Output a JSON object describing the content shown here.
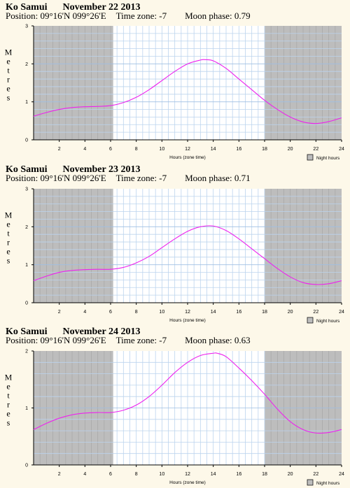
{
  "chart_data": [
    {
      "type": "line",
      "location": "Ko Samui",
      "date": "November 22 2013",
      "position": "Position: 09°16'N 099°26'E",
      "time_zone": "Time zone: -7",
      "moon_phase": "Moon phase: 0.79",
      "ylabel": "Metres",
      "xlabel": "Hours (zone time)",
      "legend_label": "Night hours",
      "xlim": [
        0,
        24
      ],
      "ylim": [
        0,
        3
      ],
      "x_ticks": [
        "2",
        "4",
        "6",
        "8",
        "10",
        "12",
        "14",
        "16",
        "18",
        "20",
        "22",
        "24"
      ],
      "y_ticks": [
        "0",
        "1",
        "2",
        "3"
      ],
      "night_before_hour": 6.2,
      "night_after_hour": 18.0,
      "series": [
        {
          "x": [
            0,
            1,
            2,
            3,
            4,
            5,
            6,
            7,
            8,
            9,
            10,
            11,
            12,
            13,
            13.4,
            14,
            15,
            16,
            17,
            18,
            19,
            20,
            21,
            22,
            23,
            24
          ],
          "y": [
            0.62,
            0.72,
            0.8,
            0.85,
            0.87,
            0.88,
            0.9,
            0.98,
            1.12,
            1.32,
            1.56,
            1.8,
            2.0,
            2.1,
            2.11,
            2.08,
            1.88,
            1.6,
            1.32,
            1.04,
            0.8,
            0.6,
            0.47,
            0.43,
            0.48,
            0.58
          ]
        }
      ]
    },
    {
      "type": "line",
      "location": "Ko Samui",
      "date": "November 23 2013",
      "position": "Position: 09°16'N 099°26'E",
      "time_zone": "Time zone: -7",
      "moon_phase": "Moon phase: 0.71",
      "ylabel": "Metres",
      "xlabel": "Hours (zone time)",
      "legend_label": "Night hours",
      "xlim": [
        0,
        24
      ],
      "ylim": [
        0,
        3
      ],
      "x_ticks": [
        "2",
        "4",
        "6",
        "8",
        "10",
        "12",
        "14",
        "16",
        "18",
        "20",
        "22",
        "24"
      ],
      "y_ticks": [
        "0",
        "1",
        "2",
        "3"
      ],
      "night_before_hour": 6.2,
      "night_after_hour": 18.0,
      "series": [
        {
          "x": [
            0,
            1,
            2,
            3,
            4,
            5,
            6,
            7,
            8,
            9,
            10,
            11,
            12,
            13,
            14,
            15,
            16,
            17,
            18,
            19,
            20,
            21,
            22,
            23,
            24
          ],
          "y": [
            0.58,
            0.7,
            0.8,
            0.85,
            0.87,
            0.88,
            0.88,
            0.93,
            1.05,
            1.22,
            1.45,
            1.68,
            1.88,
            2.0,
            2.02,
            1.9,
            1.68,
            1.42,
            1.16,
            0.9,
            0.68,
            0.53,
            0.48,
            0.5,
            0.58
          ]
        }
      ]
    },
    {
      "type": "line",
      "location": "Ko Samui",
      "date": "November 24 2013",
      "position": "Position: 09°16'N 099°26'E",
      "time_zone": "Time zone: -7",
      "moon_phase": "Moon phase: 0.63",
      "ylabel": "Metres",
      "xlabel": "Hours (zone time)",
      "legend_label": "Night hours",
      "xlim": [
        0,
        24
      ],
      "ylim": [
        0,
        2
      ],
      "x_ticks": [
        "2",
        "4",
        "6",
        "8",
        "10",
        "12",
        "14",
        "16",
        "18",
        "20",
        "22",
        "24"
      ],
      "y_ticks": [
        "0",
        "1",
        "2"
      ],
      "night_before_hour": 6.2,
      "night_after_hour": 18.0,
      "series": [
        {
          "x": [
            0,
            1,
            2,
            3,
            4,
            5,
            6,
            7,
            8,
            9,
            10,
            11,
            12,
            13,
            14,
            14.3,
            15,
            16,
            17,
            18,
            19,
            20,
            21,
            22,
            23,
            24
          ],
          "y": [
            0.62,
            0.73,
            0.82,
            0.88,
            0.91,
            0.92,
            0.92,
            0.96,
            1.05,
            1.2,
            1.4,
            1.62,
            1.8,
            1.92,
            1.96,
            1.96,
            1.9,
            1.7,
            1.48,
            1.24,
            0.98,
            0.76,
            0.62,
            0.56,
            0.57,
            0.62
          ]
        }
      ]
    }
  ]
}
